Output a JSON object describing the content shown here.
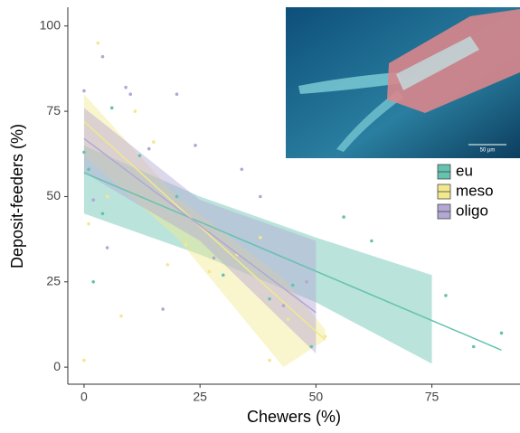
{
  "chart_data": {
    "type": "scatter",
    "x_label": "Chewers (%)",
    "y_label": "Deposit-feeders (%)",
    "xlim": [
      -3.5,
      94
    ],
    "ylim": [
      -5,
      105.5
    ],
    "xticks": [
      0,
      25,
      50,
      75
    ],
    "yticks": [
      0,
      25,
      50,
      75,
      100
    ],
    "image_scale": "50 µm",
    "series": [
      {
        "name": "eu",
        "color": "#66c2b0",
        "x": [
          0,
          1,
          2,
          4,
          6,
          12,
          20,
          30,
          40,
          45,
          49,
          56,
          62,
          78,
          84,
          90
        ],
        "values": [
          63,
          58,
          25,
          45,
          76,
          62,
          50,
          27,
          20,
          24,
          6,
          44,
          37,
          21,
          6,
          10
        ],
        "fit": {
          "x": [
            0,
            90
          ],
          "y": [
            57,
            5
          ]
        },
        "band": {
          "x": [
            0,
            25,
            50,
            75
          ],
          "lower": [
            45,
            33,
            19,
            1
          ],
          "upper": [
            65,
            50,
            38,
            27
          ]
        }
      },
      {
        "name": "meso",
        "color": "#f2e88e",
        "x": [
          0,
          1,
          3,
          5,
          8,
          11,
          15,
          18,
          22,
          27,
          33,
          38,
          40,
          44,
          52
        ],
        "values": [
          2,
          42,
          95,
          50,
          15,
          75,
          66,
          30,
          36,
          28,
          33,
          38,
          2,
          14,
          9
        ],
        "fit": {
          "x": [
            0,
            52
          ],
          "y": [
            72,
            8
          ]
        },
        "band": {
          "x": [
            0,
            20,
            43,
            52
          ],
          "lower": [
            62,
            38,
            0,
            8
          ],
          "upper": [
            80,
            50,
            26,
            11
          ]
        }
      },
      {
        "name": "oligo",
        "color": "#b3a7d4",
        "x": [
          0,
          2,
          4,
          5,
          9,
          10,
          14,
          17,
          20,
          24,
          28,
          34,
          38,
          43,
          48
        ],
        "values": [
          81,
          49,
          91,
          35,
          82,
          80,
          64,
          17,
          80,
          65,
          32,
          58,
          50,
          18,
          25
        ],
        "fit": {
          "x": [
            0,
            50
          ],
          "y": [
            67,
            16
          ]
        },
        "band": {
          "x": [
            0,
            25,
            50
          ],
          "lower": [
            57,
            37,
            4
          ],
          "upper": [
            76,
            49,
            37
          ]
        }
      }
    ]
  }
}
